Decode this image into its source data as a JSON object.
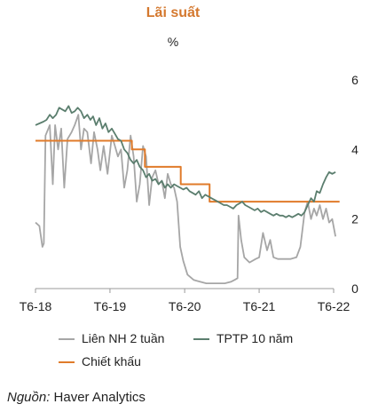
{
  "chart_data": {
    "type": "line",
    "title": "Lãi suất",
    "unit": "%",
    "x_tick_labels": [
      "T6-18",
      "T6-19",
      "T6-20",
      "T6-21",
      "T6-22"
    ],
    "x_range": [
      "2018-06",
      "2022-06"
    ],
    "ylim": [
      0,
      6
    ],
    "y_ticks": [
      0,
      2,
      4,
      6
    ],
    "y_axis_side": "right",
    "grid": false,
    "legend": "bottom",
    "series": [
      {
        "name": "Liên NH 2 tuần",
        "color": "#a6a6a6",
        "points": [
          [
            "2018-06-01",
            1.9
          ],
          [
            "2018-06-20",
            1.8
          ],
          [
            "2018-07-05",
            1.2
          ],
          [
            "2018-07-12",
            1.3
          ],
          [
            "2018-07-20",
            4.4
          ],
          [
            "2018-08-10",
            4.7
          ],
          [
            "2018-08-25",
            3.0
          ],
          [
            "2018-09-05",
            4.7
          ],
          [
            "2018-09-20",
            4.0
          ],
          [
            "2018-10-05",
            4.6
          ],
          [
            "2018-10-20",
            2.9
          ],
          [
            "2018-11-05",
            4.3
          ],
          [
            "2018-11-25",
            4.5
          ],
          [
            "2018-12-10",
            4.7
          ],
          [
            "2018-12-28",
            5.0
          ],
          [
            "2019-01-10",
            4.0
          ],
          [
            "2019-01-25",
            4.6
          ],
          [
            "2019-02-10",
            4.5
          ],
          [
            "2019-02-28",
            3.6
          ],
          [
            "2019-03-15",
            4.5
          ],
          [
            "2019-04-01",
            4.0
          ],
          [
            "2019-04-15",
            3.4
          ],
          [
            "2019-05-01",
            4.1
          ],
          [
            "2019-05-20",
            3.3
          ],
          [
            "2019-06-10",
            4.4
          ],
          [
            "2019-06-25",
            4.1
          ],
          [
            "2019-07-10",
            3.8
          ],
          [
            "2019-07-25",
            4.0
          ],
          [
            "2019-08-10",
            2.9
          ],
          [
            "2019-08-25",
            3.4
          ],
          [
            "2019-09-10",
            4.4
          ],
          [
            "2019-09-25",
            3.8
          ],
          [
            "2019-10-10",
            2.5
          ],
          [
            "2019-10-25",
            3.0
          ],
          [
            "2019-11-10",
            4.1
          ],
          [
            "2019-11-25",
            3.8
          ],
          [
            "2019-12-10",
            2.4
          ],
          [
            "2019-12-25",
            3.2
          ],
          [
            "2020-01-10",
            3.4
          ],
          [
            "2020-01-25",
            3.0
          ],
          [
            "2020-02-10",
            3.1
          ],
          [
            "2020-02-25",
            2.6
          ],
          [
            "2020-03-10",
            3.3
          ],
          [
            "2020-03-25",
            3.0
          ],
          [
            "2020-04-10",
            2.9
          ],
          [
            "2020-04-25",
            2.5
          ],
          [
            "2020-05-10",
            1.2
          ],
          [
            "2020-05-25",
            0.8
          ],
          [
            "2020-06-15",
            0.4
          ],
          [
            "2020-07-15",
            0.25
          ],
          [
            "2020-08-15",
            0.2
          ],
          [
            "2020-09-15",
            0.15
          ],
          [
            "2020-10-15",
            0.15
          ],
          [
            "2020-11-15",
            0.15
          ],
          [
            "2020-12-15",
            0.15
          ],
          [
            "2021-01-15",
            0.2
          ],
          [
            "2021-02-01",
            0.25
          ],
          [
            "2021-02-15",
            0.3
          ],
          [
            "2021-02-20",
            2.1
          ],
          [
            "2021-03-05",
            1.4
          ],
          [
            "2021-03-20",
            0.9
          ],
          [
            "2021-04-15",
            0.75
          ],
          [
            "2021-05-15",
            0.85
          ],
          [
            "2021-06-01",
            0.9
          ],
          [
            "2021-06-20",
            1.6
          ],
          [
            "2021-07-10",
            1.1
          ],
          [
            "2021-07-25",
            1.4
          ],
          [
            "2021-08-10",
            0.9
          ],
          [
            "2021-09-01",
            0.85
          ],
          [
            "2021-10-01",
            0.85
          ],
          [
            "2021-11-01",
            0.85
          ],
          [
            "2021-12-01",
            0.9
          ],
          [
            "2021-12-20",
            1.2
          ],
          [
            "2022-01-10",
            2.2
          ],
          [
            "2022-01-25",
            2.5
          ],
          [
            "2022-02-10",
            2.0
          ],
          [
            "2022-02-25",
            2.3
          ],
          [
            "2022-03-10",
            2.1
          ],
          [
            "2022-03-25",
            2.4
          ],
          [
            "2022-04-10",
            2.0
          ],
          [
            "2022-04-25",
            2.3
          ],
          [
            "2022-05-10",
            1.9
          ],
          [
            "2022-05-25",
            2.0
          ],
          [
            "2022-06-10",
            1.5
          ]
        ]
      },
      {
        "name": "TPTP 10 năm",
        "color": "#5b7e6e",
        "points": [
          [
            "2018-06-01",
            4.7
          ],
          [
            "2018-06-20",
            4.75
          ],
          [
            "2018-07-10",
            4.8
          ],
          [
            "2018-07-25",
            4.85
          ],
          [
            "2018-08-10",
            5.0
          ],
          [
            "2018-08-25",
            4.9
          ],
          [
            "2018-09-10",
            5.0
          ],
          [
            "2018-09-25",
            5.2
          ],
          [
            "2018-10-10",
            5.15
          ],
          [
            "2018-10-25",
            5.1
          ],
          [
            "2018-11-10",
            5.25
          ],
          [
            "2018-11-25",
            5.05
          ],
          [
            "2018-12-10",
            5.1
          ],
          [
            "2018-12-25",
            5.2
          ],
          [
            "2019-01-10",
            5.1
          ],
          [
            "2019-01-25",
            4.9
          ],
          [
            "2019-02-10",
            5.0
          ],
          [
            "2019-02-25",
            4.85
          ],
          [
            "2019-03-10",
            4.95
          ],
          [
            "2019-03-25",
            4.7
          ],
          [
            "2019-04-10",
            4.9
          ],
          [
            "2019-04-25",
            4.6
          ],
          [
            "2019-05-10",
            4.75
          ],
          [
            "2019-05-25",
            4.5
          ],
          [
            "2019-06-10",
            4.6
          ],
          [
            "2019-06-25",
            4.45
          ],
          [
            "2019-07-10",
            4.3
          ],
          [
            "2019-07-25",
            4.25
          ],
          [
            "2019-08-10",
            4.0
          ],
          [
            "2019-08-25",
            3.9
          ],
          [
            "2019-09-10",
            3.7
          ],
          [
            "2019-09-25",
            3.6
          ],
          [
            "2019-10-10",
            3.7
          ],
          [
            "2019-10-25",
            3.5
          ],
          [
            "2019-11-10",
            3.4
          ],
          [
            "2019-11-25",
            3.2
          ],
          [
            "2019-12-10",
            3.3
          ],
          [
            "2019-12-25",
            3.1
          ],
          [
            "2020-01-10",
            3.15
          ],
          [
            "2020-01-25",
            3.0
          ],
          [
            "2020-02-10",
            3.1
          ],
          [
            "2020-02-25",
            2.9
          ],
          [
            "2020-03-10",
            3.0
          ],
          [
            "2020-03-25",
            2.9
          ],
          [
            "2020-04-10",
            3.0
          ],
          [
            "2020-04-25",
            2.95
          ],
          [
            "2020-05-10",
            2.9
          ],
          [
            "2020-05-25",
            2.85
          ],
          [
            "2020-06-10",
            2.9
          ],
          [
            "2020-06-25",
            2.8
          ],
          [
            "2020-07-10",
            2.75
          ],
          [
            "2020-07-25",
            2.7
          ],
          [
            "2020-08-10",
            2.8
          ],
          [
            "2020-08-25",
            2.6
          ],
          [
            "2020-09-10",
            2.7
          ],
          [
            "2020-09-25",
            2.65
          ],
          [
            "2020-10-10",
            2.6
          ],
          [
            "2020-10-25",
            2.55
          ],
          [
            "2020-11-10",
            2.5
          ],
          [
            "2020-11-25",
            2.45
          ],
          [
            "2020-12-10",
            2.4
          ],
          [
            "2020-12-25",
            2.4
          ],
          [
            "2021-01-10",
            2.35
          ],
          [
            "2021-01-25",
            2.3
          ],
          [
            "2021-02-10",
            2.4
          ],
          [
            "2021-02-25",
            2.45
          ],
          [
            "2021-03-10",
            2.5
          ],
          [
            "2021-03-25",
            2.4
          ],
          [
            "2021-04-10",
            2.35
          ],
          [
            "2021-04-25",
            2.3
          ],
          [
            "2021-05-10",
            2.25
          ],
          [
            "2021-05-25",
            2.3
          ],
          [
            "2021-06-10",
            2.2
          ],
          [
            "2021-06-25",
            2.25
          ],
          [
            "2021-07-10",
            2.2
          ],
          [
            "2021-07-25",
            2.15
          ],
          [
            "2021-08-10",
            2.1
          ],
          [
            "2021-08-25",
            2.15
          ],
          [
            "2021-09-10",
            2.1
          ],
          [
            "2021-09-25",
            2.1
          ],
          [
            "2021-10-10",
            2.05
          ],
          [
            "2021-10-25",
            2.1
          ],
          [
            "2021-11-10",
            2.05
          ],
          [
            "2021-11-25",
            2.1
          ],
          [
            "2021-12-10",
            2.15
          ],
          [
            "2021-12-25",
            2.1
          ],
          [
            "2022-01-10",
            2.2
          ],
          [
            "2022-01-25",
            2.4
          ],
          [
            "2022-02-10",
            2.6
          ],
          [
            "2022-02-25",
            2.5
          ],
          [
            "2022-03-10",
            2.8
          ],
          [
            "2022-03-25",
            2.75
          ],
          [
            "2022-04-10",
            3.0
          ],
          [
            "2022-04-25",
            3.2
          ],
          [
            "2022-05-10",
            3.35
          ],
          [
            "2022-05-25",
            3.3
          ],
          [
            "2022-06-10",
            3.35
          ]
        ]
      },
      {
        "name": "Chiết khấu",
        "color": "#e07b2a",
        "step": true,
        "points": [
          [
            "2018-06-01",
            4.25
          ],
          [
            "2019-09-16",
            4.0
          ],
          [
            "2019-11-19",
            3.5
          ],
          [
            "2020-03-17",
            3.5
          ],
          [
            "2020-05-13",
            3.0
          ],
          [
            "2020-10-01",
            2.5
          ],
          [
            "2022-06-30",
            2.5
          ]
        ]
      }
    ]
  },
  "footer": {
    "source_label": "Nguồn:",
    "source_value": " Haver Analytics"
  }
}
